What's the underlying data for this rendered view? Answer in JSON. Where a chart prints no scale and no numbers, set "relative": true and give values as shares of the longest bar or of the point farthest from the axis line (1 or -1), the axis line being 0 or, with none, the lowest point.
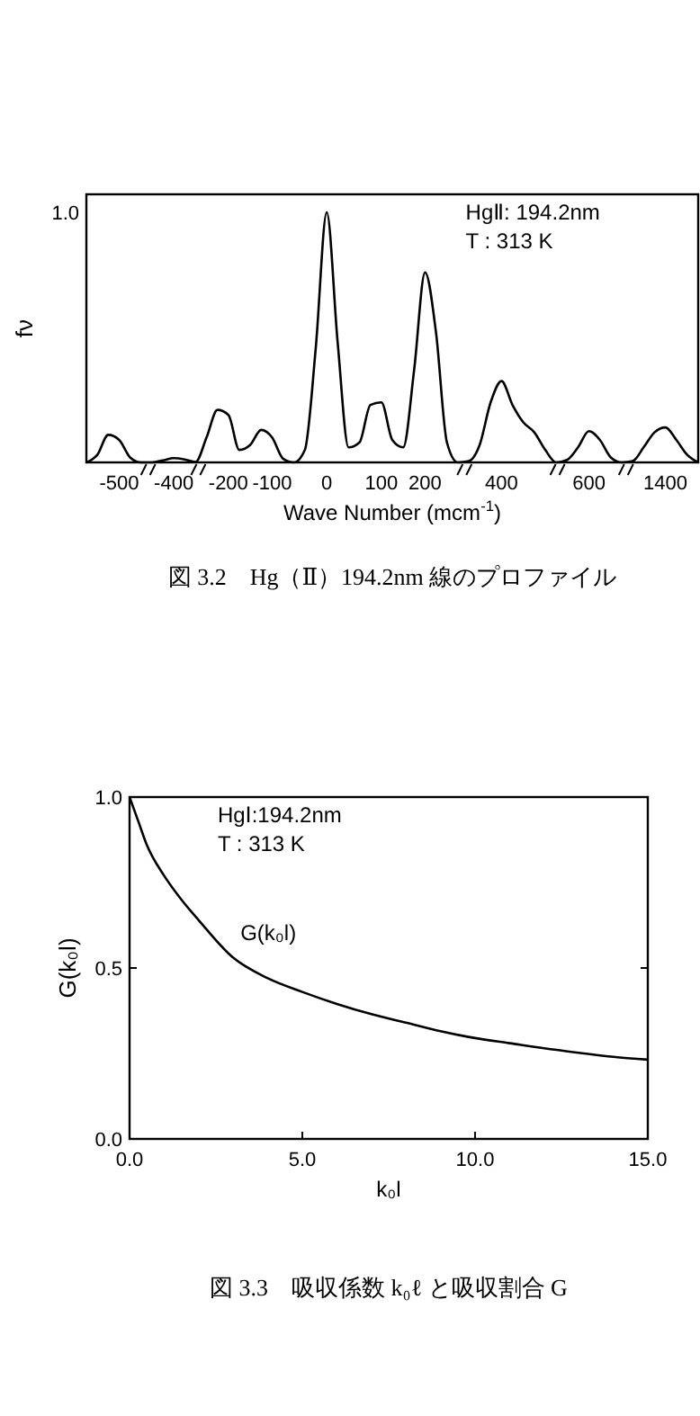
{
  "chart_data": [
    {
      "type": "line",
      "relative": true,
      "ylabel": "fν",
      "xlabel": "Wave Number (mcm$^{-1}$)",
      "categories": [
        null,
        null,
        null,
        "-500",
        null,
        null,
        null,
        null,
        "-400",
        null,
        null,
        null,
        null,
        "-200",
        null,
        null,
        null,
        "-100",
        null,
        null,
        null,
        null,
        "0",
        null,
        null,
        null,
        null,
        "100",
        null,
        null,
        null,
        "200",
        null,
        null,
        null,
        null,
        null,
        null,
        "400",
        null,
        null,
        null,
        null,
        null,
        null,
        null,
        "600",
        null,
        null,
        null,
        null,
        null,
        null,
        "1400",
        null,
        null,
        null
      ],
      "annotations": [
        "1.0",
        "HgⅡ: 194.2nm",
        "T :  313 K",
        "図 3.2　Hg（Ⅱ）194.2nm 線のプロファイル"
      ],
      "series": [
        {
          "color": "#000000",
          "values": [
            0,
            0.03,
            0.11,
            0.09,
            0.02,
            0,
            0,
            0.008,
            0.017,
            0.012,
            0.002,
            0.1,
            0.21,
            0.19,
            0.05,
            0.07,
            0.13,
            0.1,
            0.015,
            0,
            0.05,
            0.46,
            1.0,
            0.48,
            0.06,
            0.08,
            0.23,
            0.24,
            0.09,
            0.06,
            0.37,
            0.76,
            0.52,
            0.08,
            0,
            0.005,
            0.07,
            0.24,
            0.325,
            0.23,
            0.16,
            0.12,
            0.05,
            0,
            0.01,
            0.06,
            0.125,
            0.09,
            0.02,
            0,
            0.005,
            0.06,
            0.12,
            0.14,
            0.09,
            0.03,
            0
          ]
        }
      ]
    },
    {
      "type": "line",
      "xlabel": "k₀l",
      "ylabel": "G(k₀l)",
      "annotations": [
        "HgⅠ:194.2nm",
        "T :  313 K",
        "図 3.3　吸収係数 k₀ℓ と吸収割合 G"
      ],
      "xlim": [
        0,
        15
      ],
      "xticks": [
        {
          "value": 0,
          "label": "0.0"
        },
        {
          "value": 5,
          "label": "5.0"
        },
        {
          "value": 10,
          "label": "10.0"
        },
        {
          "value": 15,
          "label": "15.0"
        }
      ],
      "ylim": [
        0,
        1
      ],
      "yticks": [
        {
          "value": 0,
          "label": "0.0"
        },
        {
          "value": 0.5,
          "label": "0.5"
        },
        {
          "value": 1,
          "label": "1.0"
        }
      ],
      "x": [
        0,
        0.25,
        0.5,
        1,
        1.5,
        2,
        3,
        4,
        5,
        6,
        7,
        8,
        9,
        10,
        11,
        12,
        13,
        14,
        15
      ],
      "series": [
        {
          "name": "G(k₀l)",
          "color": "#000000",
          "values": [
            1.0,
            0.93,
            0.86,
            0.77,
            0.7,
            0.64,
            0.53,
            0.47,
            0.43,
            0.395,
            0.365,
            0.34,
            0.315,
            0.295,
            0.28,
            0.265,
            0.252,
            0.24,
            0.232
          ]
        }
      ]
    }
  ]
}
